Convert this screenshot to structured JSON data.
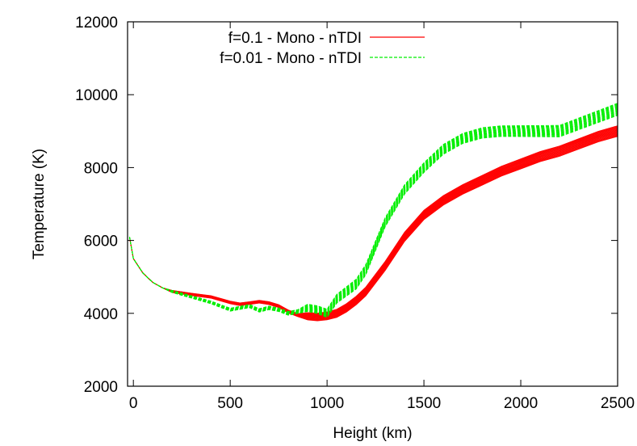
{
  "chart_data": {
    "type": "line",
    "xlabel": "Height (km)",
    "ylabel": "Temperature (K)",
    "xlim": [
      -30,
      2500
    ],
    "ylim": [
      2000,
      12000
    ],
    "x_ticks": [
      0,
      500,
      1000,
      1500,
      2000,
      2500
    ],
    "y_ticks": [
      2000,
      4000,
      6000,
      8000,
      10000,
      12000
    ],
    "x_tick_labels": [
      "0",
      "500",
      "1000",
      "1500",
      "2000",
      "2500"
    ],
    "y_tick_labels": [
      "2000",
      "4000",
      "6000",
      "8000",
      "10000",
      "12000"
    ],
    "grid": false,
    "legend_position": "top-left",
    "series": [
      {
        "name": "f=0.1 - Mono - nTDI",
        "color": "#ff0000",
        "style": "solid",
        "x": [
          -20,
          0,
          50,
          100,
          150,
          200,
          300,
          400,
          500,
          550,
          600,
          650,
          700,
          750,
          800,
          850,
          900,
          950,
          1000,
          1050,
          1100,
          1150,
          1200,
          1300,
          1400,
          1500,
          1600,
          1700,
          1800,
          1900,
          2000,
          2100,
          2200,
          2300,
          2400,
          2500
        ],
        "y": [
          6100,
          5500,
          5100,
          4850,
          4700,
          4600,
          4520,
          4450,
          4300,
          4250,
          4280,
          4320,
          4280,
          4200,
          4050,
          3950,
          3920,
          3900,
          3930,
          4000,
          4150,
          4350,
          4600,
          5300,
          6100,
          6700,
          7100,
          7400,
          7650,
          7900,
          8100,
          8300,
          8450,
          8650,
          8850,
          9000
        ]
      },
      {
        "name": "f=0.01 - Mono - nTDI",
        "color": "#00ee00",
        "style": "dashed",
        "x": [
          -20,
          0,
          50,
          100,
          150,
          200,
          300,
          400,
          500,
          550,
          600,
          650,
          700,
          750,
          800,
          850,
          900,
          950,
          1000,
          1050,
          1100,
          1150,
          1200,
          1300,
          1400,
          1500,
          1600,
          1700,
          1800,
          1900,
          2000,
          2100,
          2200,
          2300,
          2400,
          2500
        ],
        "y": [
          6100,
          5500,
          5100,
          4850,
          4700,
          4600,
          4450,
          4300,
          4100,
          4150,
          4200,
          4080,
          4150,
          4100,
          4000,
          4050,
          4150,
          4100,
          4000,
          4400,
          4600,
          4800,
          5200,
          6500,
          7400,
          8000,
          8500,
          8800,
          8950,
          9000,
          9000,
          9000,
          9000,
          9200,
          9400,
          9600
        ]
      }
    ]
  }
}
